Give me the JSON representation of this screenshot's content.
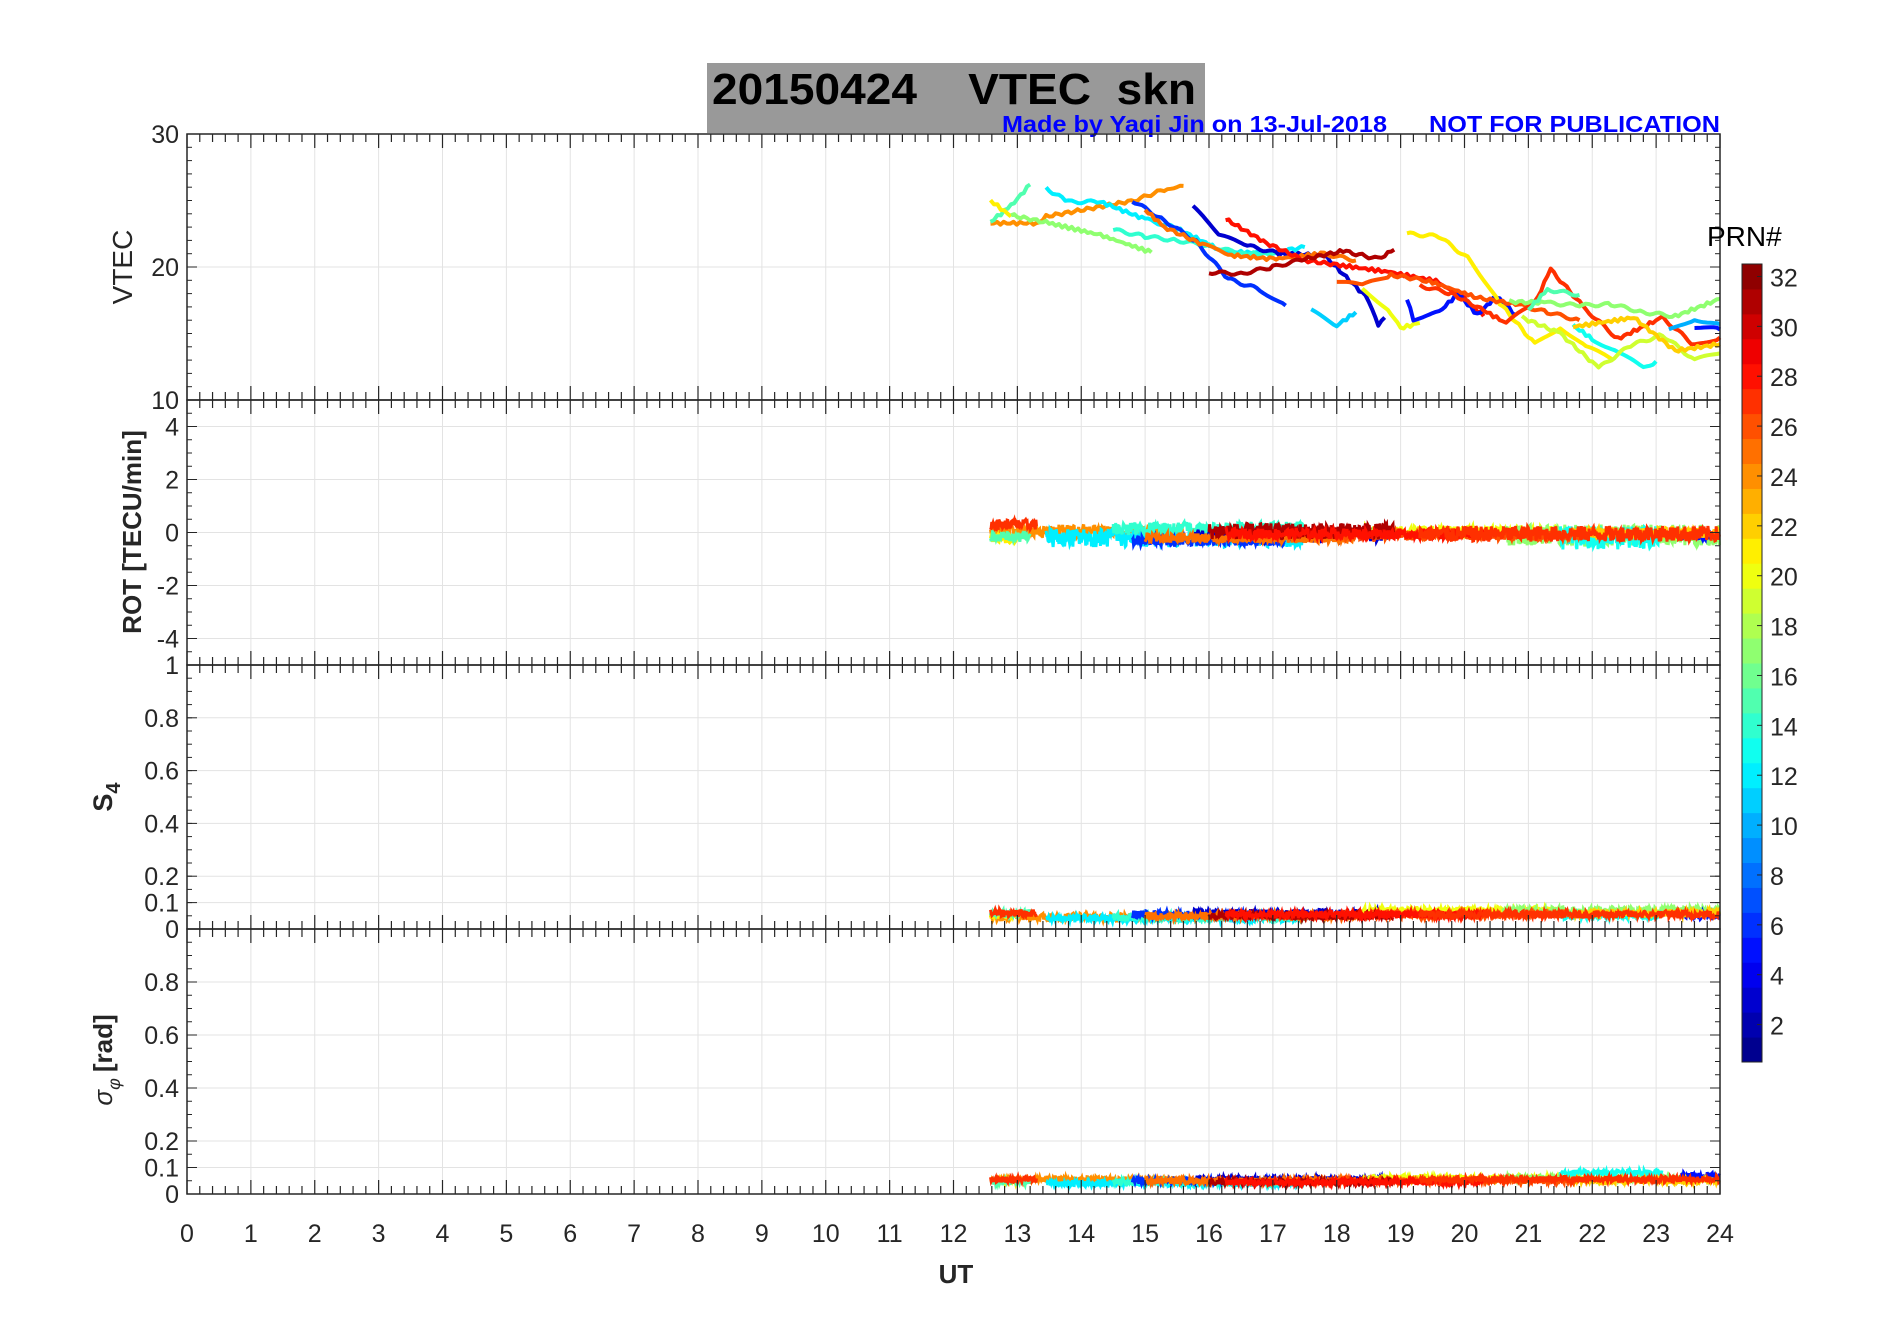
{
  "chart_data": {
    "type": "line",
    "title": "20150424    VTEC  skn",
    "credit": "Made by Yaqi Jin on 13-Jul-2018",
    "notice": "NOT FOR PUBLICATION",
    "xlabel": "UT",
    "xlim": [
      0,
      24
    ],
    "xticks": [
      0,
      1,
      2,
      3,
      4,
      5,
      6,
      7,
      8,
      9,
      10,
      11,
      12,
      13,
      14,
      15,
      16,
      17,
      18,
      19,
      20,
      21,
      22,
      23,
      24
    ],
    "grid": true,
    "colorbar": {
      "label": "PRN#",
      "range": [
        1,
        32
      ],
      "colormap": "jet",
      "ticks": [
        2,
        4,
        6,
        8,
        10,
        12,
        14,
        16,
        18,
        20,
        22,
        24,
        26,
        28,
        30,
        32
      ]
    },
    "panels": [
      {
        "ylabel": "VTEC",
        "ylim": [
          10,
          30
        ],
        "yticks": [
          10,
          20,
          30
        ]
      },
      {
        "ylabel": "ROT [TECU/min]",
        "ylim": [
          -5,
          5
        ],
        "yticks": [
          -4,
          -2,
          0,
          2,
          4
        ]
      },
      {
        "ylabel_main": "S",
        "ylabel_sub": "4",
        "ylim": [
          0,
          1
        ],
        "yticks": [
          0,
          0.1,
          0.2,
          0.4,
          0.6,
          0.8,
          1
        ]
      },
      {
        "ylabel_main": "σ",
        "ylabel_sub": "φ",
        "ylabel_unit": "[rad]",
        "ylim": [
          0,
          1
        ],
        "yticks": [
          0,
          0.1,
          0.2,
          0.4,
          0.6,
          0.8
        ]
      }
    ],
    "vtec_series": [
      {
        "prn": 24,
        "points": [
          [
            12.58,
            23.3
          ],
          [
            13.3,
            23.3
          ],
          [
            13.45,
            23.8
          ],
          [
            14.83,
            25.0
          ],
          [
            15.4,
            26.0
          ],
          [
            15.6,
            26.1
          ]
        ]
      },
      {
        "prn": 15,
        "points": [
          [
            12.58,
            23.4
          ],
          [
            12.9,
            24.6
          ],
          [
            13.2,
            26.2
          ]
        ]
      },
      {
        "prn": 21,
        "points": [
          [
            12.58,
            25.0
          ],
          [
            12.9,
            23.8
          ]
        ]
      },
      {
        "prn": 17,
        "points": [
          [
            12.9,
            23.9
          ],
          [
            13.5,
            23.3
          ],
          [
            14.3,
            22.4
          ],
          [
            15.1,
            21.1
          ]
        ]
      },
      {
        "prn": 12,
        "points": [
          [
            13.45,
            25.9
          ],
          [
            13.8,
            24.9
          ],
          [
            14.3,
            24.9
          ],
          [
            15.0,
            23.6
          ],
          [
            15.5,
            22.9
          ],
          [
            16.2,
            21.2
          ],
          [
            16.9,
            21.0
          ],
          [
            17.5,
            21.5
          ]
        ]
      },
      {
        "prn": 14,
        "points": [
          [
            14.5,
            22.8
          ],
          [
            15.0,
            22.3
          ],
          [
            15.5,
            22.0
          ],
          [
            16.0,
            21.6
          ],
          [
            16.5,
            21.0
          ],
          [
            17.1,
            21.0
          ]
        ]
      },
      {
        "prn": 6,
        "points": [
          [
            14.8,
            25.0
          ],
          [
            15.3,
            23.5
          ],
          [
            15.8,
            21.9
          ],
          [
            16.3,
            19.1
          ],
          [
            16.8,
            18.3
          ],
          [
            17.2,
            17.1
          ]
        ]
      },
      {
        "prn": 3,
        "points": [
          [
            15.75,
            24.5
          ],
          [
            16.2,
            22.3
          ],
          [
            16.6,
            21.6
          ],
          [
            17.1,
            21.0
          ],
          [
            17.8,
            20.9
          ],
          [
            18.45,
            17.8
          ],
          [
            18.65,
            15.7
          ],
          [
            18.75,
            16.2
          ]
        ]
      },
      {
        "prn": 25,
        "points": [
          [
            15.0,
            24.3
          ],
          [
            15.3,
            23.0
          ],
          [
            15.9,
            21.7
          ],
          [
            16.3,
            20.9
          ],
          [
            17.0,
            20.6
          ],
          [
            17.8,
            21.0
          ],
          [
            18.3,
            20.5
          ]
        ]
      },
      {
        "prn": 28,
        "points": [
          [
            16.26,
            23.6
          ],
          [
            16.9,
            21.8
          ],
          [
            17.5,
            20.5
          ],
          [
            18.1,
            20.1
          ],
          [
            18.85,
            19.6
          ],
          [
            19.6,
            18.9
          ],
          [
            20.0,
            17.6
          ],
          [
            20.3,
            16.3
          ]
        ]
      },
      {
        "prn": 31,
        "points": [
          [
            16.0,
            19.6
          ],
          [
            16.5,
            19.5
          ],
          [
            17.0,
            20.0
          ],
          [
            17.5,
            20.6
          ],
          [
            18.1,
            21.2
          ],
          [
            18.65,
            20.6
          ],
          [
            18.9,
            21.3
          ]
        ]
      },
      {
        "prn": 11,
        "points": [
          [
            17.6,
            16.7
          ],
          [
            18.0,
            15.6
          ],
          [
            18.3,
            16.6
          ]
        ]
      },
      {
        "prn": 20,
        "points": [
          [
            18.4,
            18.3
          ],
          [
            18.8,
            16.9
          ],
          [
            19.0,
            15.4
          ],
          [
            19.3,
            15.8
          ]
        ]
      },
      {
        "prn": 5,
        "points": [
          [
            19.1,
            17.6
          ],
          [
            19.2,
            16.1
          ],
          [
            19.6,
            16.6
          ],
          [
            19.9,
            18.0
          ],
          [
            20.2,
            16.4
          ],
          [
            20.5,
            17.8
          ],
          [
            20.8,
            16.4
          ]
        ]
      },
      {
        "prn": 21,
        "points": [
          [
            19.1,
            22.5
          ],
          [
            19.6,
            22.3
          ],
          [
            20.1,
            20.5
          ],
          [
            20.55,
            17.3
          ],
          [
            21.1,
            14.2
          ],
          [
            21.5,
            15.5
          ],
          [
            21.9,
            14.0
          ],
          [
            22.3,
            13.1
          ]
        ]
      },
      {
        "prn": 26,
        "points": [
          [
            18.0,
            18.9
          ],
          [
            18.4,
            18.6
          ],
          [
            18.85,
            19.4
          ],
          [
            19.4,
            19.0
          ],
          [
            20.2,
            17.7
          ],
          [
            20.8,
            17.2
          ],
          [
            21.3,
            16.6
          ],
          [
            21.8,
            16.0
          ]
        ]
      },
      {
        "prn": 27,
        "points": [
          [
            19.3,
            18.6
          ],
          [
            19.8,
            18.0
          ],
          [
            20.35,
            16.6
          ],
          [
            20.65,
            15.8
          ],
          [
            21.1,
            17.3
          ],
          [
            21.35,
            19.8
          ],
          [
            21.9,
            16.8
          ],
          [
            22.4,
            14.6
          ],
          [
            23.1,
            16.2
          ],
          [
            23.6,
            14.1
          ],
          [
            24.0,
            14.7
          ]
        ]
      },
      {
        "prn": 17,
        "points": [
          [
            20.7,
            17.4
          ],
          [
            21.3,
            17.3
          ],
          [
            21.8,
            17.1
          ],
          [
            22.3,
            17.2
          ],
          [
            22.8,
            16.6
          ],
          [
            23.3,
            16.3
          ],
          [
            24.0,
            17.6
          ]
        ]
      },
      {
        "prn": 15,
        "points": [
          [
            21.0,
            16.8
          ],
          [
            21.3,
            18.3
          ],
          [
            21.8,
            17.9
          ]
        ]
      },
      {
        "prn": 13,
        "points": [
          [
            21.7,
            15.6
          ],
          [
            22.0,
            14.6
          ],
          [
            22.4,
            13.6
          ],
          [
            22.8,
            12.4
          ],
          [
            23.0,
            12.9
          ]
        ]
      },
      {
        "prn": 19,
        "points": [
          [
            20.9,
            16.2
          ],
          [
            21.5,
            15.0
          ],
          [
            22.1,
            12.4
          ],
          [
            22.6,
            14.1
          ],
          [
            23.1,
            14.9
          ],
          [
            23.6,
            13.0
          ],
          [
            24.0,
            13.5
          ]
        ]
      },
      {
        "prn": 22,
        "points": [
          [
            21.7,
            15.5
          ],
          [
            22.65,
            16.2
          ],
          [
            23.3,
            13.7
          ],
          [
            24.0,
            14.2
          ]
        ]
      },
      {
        "prn": 10,
        "points": [
          [
            23.2,
            15.2
          ],
          [
            23.6,
            16.1
          ],
          [
            24.0,
            15.7
          ]
        ]
      },
      {
        "prn": 5,
        "points": [
          [
            23.6,
            15.5
          ],
          [
            24.0,
            15.3
          ]
        ]
      }
    ],
    "arcs": [
      {
        "prn": 24,
        "start": 12.58,
        "end": 15.6,
        "rot": 0.05,
        "rot_amp": 0.25,
        "s4": 0.045,
        "sigma": 0.055
      },
      {
        "prn": 21,
        "start": 12.58,
        "end": 13.0,
        "rot": -0.2,
        "rot_amp": 0.2,
        "s4": 0.05,
        "sigma": 0.05
      },
      {
        "prn": 15,
        "start": 12.58,
        "end": 13.2,
        "rot": -0.15,
        "rot_amp": 0.2,
        "s4": 0.06,
        "sigma": 0.045
      },
      {
        "prn": 12,
        "start": 13.45,
        "end": 17.5,
        "rot": -0.2,
        "rot_amp": 0.35,
        "s4": 0.04,
        "sigma": 0.04
      },
      {
        "prn": 14,
        "start": 14.5,
        "end": 17.5,
        "rot": 0.15,
        "rot_amp": 0.25,
        "s4": 0.045,
        "sigma": 0.045
      },
      {
        "prn": 6,
        "start": 14.8,
        "end": 17.2,
        "rot": -0.3,
        "rot_amp": 0.2,
        "s4": 0.055,
        "sigma": 0.05
      },
      {
        "prn": 3,
        "start": 15.75,
        "end": 18.8,
        "rot": -0.1,
        "rot_amp": 0.25,
        "s4": 0.06,
        "sigma": 0.055
      },
      {
        "prn": 20,
        "start": 18.4,
        "end": 21.5,
        "rot": 0.05,
        "rot_amp": 0.2,
        "s4": 0.07,
        "sigma": 0.06
      },
      {
        "prn": 17,
        "start": 20.6,
        "end": 24.0,
        "rot": -0.1,
        "rot_amp": 0.4,
        "s4": 0.07,
        "sigma": 0.06
      },
      {
        "prn": 13,
        "start": 21.5,
        "end": 23.1,
        "rot": -0.2,
        "rot_amp": 0.45,
        "s4": 0.05,
        "sigma": 0.08
      },
      {
        "prn": 5,
        "start": 23.4,
        "end": 24.0,
        "rot": -0.1,
        "rot_amp": 0.2,
        "s4": 0.05,
        "sigma": 0.07
      },
      {
        "prn": 22,
        "start": 21.7,
        "end": 24.0,
        "rot": 0.0,
        "rot_amp": 0.2,
        "s4": 0.06,
        "sigma": 0.05
      },
      {
        "prn": 25,
        "start": 15.0,
        "end": 18.3,
        "rot": -0.2,
        "rot_amp": 0.2,
        "s4": 0.05,
        "sigma": 0.05
      },
      {
        "prn": 26,
        "start": 18.0,
        "end": 21.8,
        "rot": -0.1,
        "rot_amp": 0.2,
        "s4": 0.055,
        "sigma": 0.05
      },
      {
        "prn": 31,
        "start": 16.0,
        "end": 18.9,
        "rot": 0.05,
        "rot_amp": 0.3,
        "s4": 0.05,
        "sigma": 0.045
      },
      {
        "prn": 28,
        "start": 16.26,
        "end": 20.3,
        "rot": -0.05,
        "rot_amp": 0.2,
        "s4": 0.055,
        "sigma": 0.045
      },
      {
        "prn": 27,
        "start": 12.58,
        "end": 13.3,
        "rot": 0.3,
        "rot_amp": 0.2,
        "s4": 0.06,
        "sigma": 0.055
      },
      {
        "prn": 27,
        "start": 19.3,
        "end": 24.0,
        "rot": -0.05,
        "rot_amp": 0.3,
        "s4": 0.055,
        "sigma": 0.055
      }
    ]
  }
}
